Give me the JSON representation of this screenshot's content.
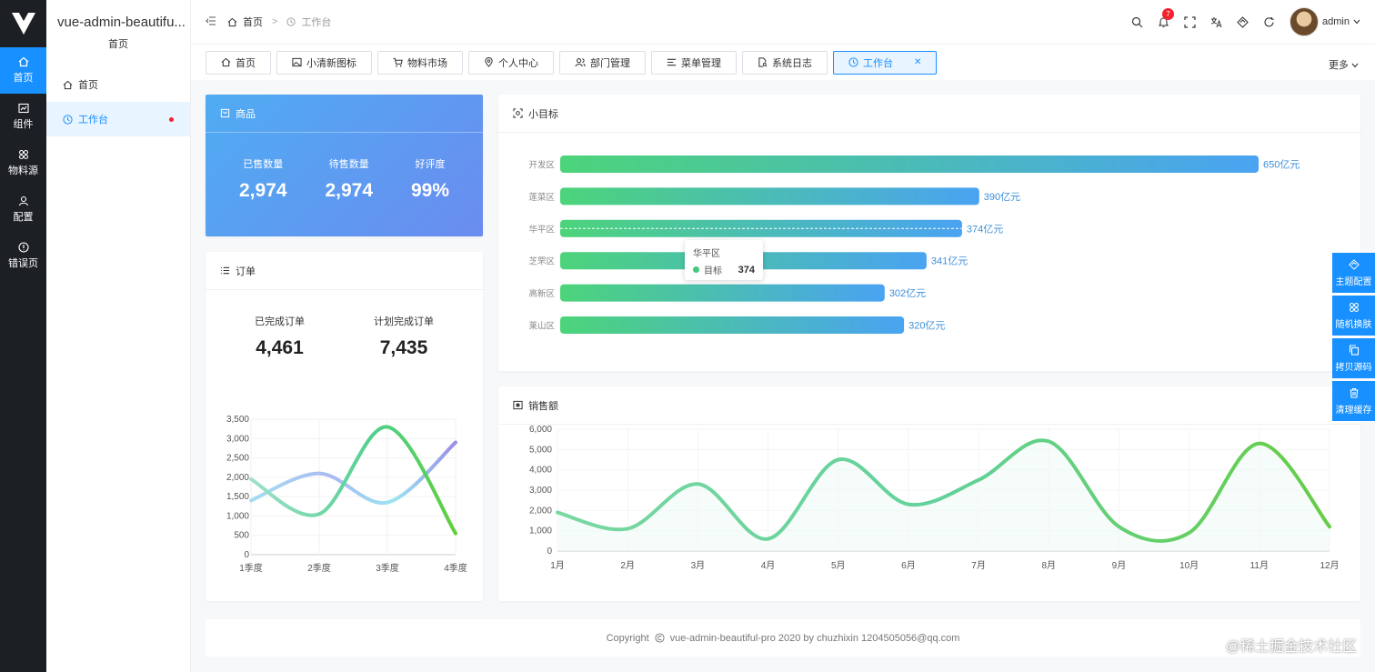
{
  "rail": {
    "items": [
      {
        "label": "首页",
        "icon": "home-icon"
      },
      {
        "label": "组件",
        "icon": "chart-icon"
      },
      {
        "label": "物料源",
        "icon": "grid-icon"
      },
      {
        "label": "配置",
        "icon": "user-icon"
      },
      {
        "label": "错误页",
        "icon": "alert-icon"
      }
    ]
  },
  "submenu": {
    "brand": "vue-admin-beautifu...",
    "brand_sub": "首页",
    "items": [
      {
        "label": "首页"
      },
      {
        "label": "工作台"
      }
    ]
  },
  "breadcrumb": {
    "home": "首页",
    "sep": ">",
    "current": "工作台"
  },
  "header": {
    "notification_count": "7",
    "username": "admin"
  },
  "tabs": [
    {
      "label": "首页"
    },
    {
      "label": "小清新图标"
    },
    {
      "label": "物料市场"
    },
    {
      "label": "个人中心"
    },
    {
      "label": "部门管理"
    },
    {
      "label": "菜单管理"
    },
    {
      "label": "系统日志"
    },
    {
      "label": "工作台"
    }
  ],
  "tabs_more": "更多",
  "goods": {
    "title": "商品",
    "stats": [
      {
        "label": "已售数量",
        "value": "2,974"
      },
      {
        "label": "待售数量",
        "value": "2,974"
      },
      {
        "label": "好评度",
        "value": "99%"
      }
    ]
  },
  "orders": {
    "title": "订单",
    "stats": [
      {
        "label": "已完成订单",
        "value": "4,461"
      },
      {
        "label": "计划完成订单",
        "value": "7,435"
      }
    ]
  },
  "goal": {
    "title": "小目标",
    "tooltip": {
      "title": "华平区",
      "series": "目标",
      "value": "374"
    }
  },
  "sales": {
    "title": "销售额"
  },
  "float_buttons": [
    {
      "label": "主题配置"
    },
    {
      "label": "随机换肤"
    },
    {
      "label": "拷贝源码"
    },
    {
      "label": "清理缓存"
    }
  ],
  "footer": {
    "copyright": "Copyright",
    "text": "vue-admin-beautiful-pro 2020 by chuzhixin 1204505056@qq.com"
  },
  "watermark": "@稀土掘金技术社区",
  "chart_data": [
    {
      "type": "line",
      "name": "orders-chart",
      "categories": [
        "1季度",
        "2季度",
        "3季度",
        "4季度"
      ],
      "series": [
        {
          "values": [
            1950,
            1050,
            3300,
            550
          ],
          "color": "#5bd28e"
        },
        {
          "values": [
            1400,
            2100,
            1350,
            2900
          ],
          "color": "#a3b8f2"
        }
      ],
      "ylim": [
        0,
        3500
      ],
      "yticks": [
        "0",
        "500",
        "1,000",
        "1,500",
        "2,000",
        "2,500",
        "3,000",
        "3,500"
      ]
    },
    {
      "type": "bar",
      "name": "goal-chart",
      "orientation": "horizontal",
      "categories": [
        "开发区",
        "莲菜区",
        "华平区",
        "芝罘区",
        "高新区",
        "莱山区"
      ],
      "values": [
        650,
        390,
        374,
        341,
        302,
        320
      ],
      "value_labels": [
        "650亿元",
        "390亿元",
        "374亿元",
        "341亿元",
        "302亿元",
        "320亿元"
      ],
      "xlim": [
        0,
        650
      ]
    },
    {
      "type": "line",
      "name": "sales-chart",
      "categories": [
        "1月",
        "2月",
        "3月",
        "4月",
        "5月",
        "6月",
        "7月",
        "8月",
        "9月",
        "10月",
        "11月",
        "12月"
      ],
      "values": [
        1900,
        1100,
        3300,
        600,
        4500,
        2300,
        3500,
        5400,
        1200,
        900,
        5300,
        1200
      ],
      "ylim": [
        0,
        6000
      ],
      "yticks": [
        "0",
        "1,000",
        "2,000",
        "3,000",
        "4,000",
        "5,000",
        "6,000"
      ]
    }
  ]
}
